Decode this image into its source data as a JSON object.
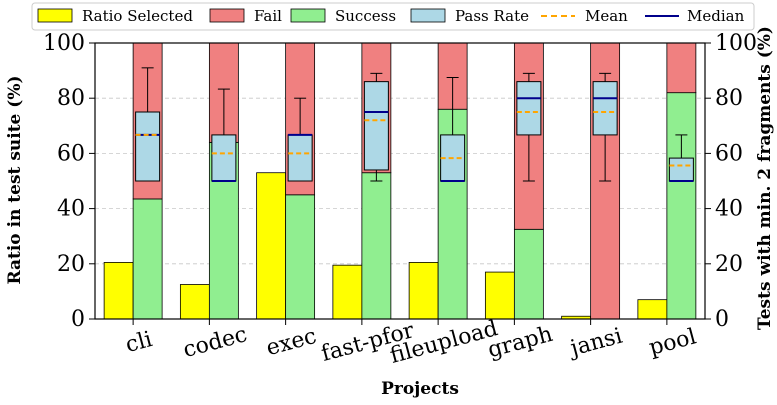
{
  "chart_data": {
    "type": "bar",
    "categories": [
      "cli",
      "codec",
      "exec",
      "fast-pfor",
      "fileupload",
      "graph",
      "jansi",
      "pool"
    ],
    "xlabel": "Projects",
    "ylabel": "Ratio in test suite (%)",
    "y2label": "Tests with min. 2 fragments (%)",
    "ylim": [
      0,
      100
    ],
    "y2lim": [
      0,
      100
    ],
    "yticks": [
      "0",
      "20",
      "40",
      "60",
      "80",
      "100"
    ],
    "grid": "horizontal dashed",
    "legend_position": "top",
    "series": [
      {
        "name": "Ratio Selected",
        "color": "#ffff00",
        "values": [
          20.5,
          12.5,
          53,
          19.5,
          20.5,
          17,
          1,
          7
        ]
      },
      {
        "name": "Fail",
        "color": "#f08080",
        "values": [
          56.5,
          36,
          55,
          47,
          24,
          67.5,
          100,
          18
        ]
      },
      {
        "name": "Success",
        "color": "#90ee90",
        "values": [
          43.5,
          64,
          45,
          53,
          76,
          32.5,
          0,
          82
        ]
      }
    ],
    "pass_rate_boxes": {
      "name": "Pass Rate",
      "color": "#add8e6",
      "boxes": [
        {
          "whisker_low": 50,
          "q1": 50,
          "median": 66.7,
          "q3": 75,
          "whisker_high": 91,
          "mean": 66.7
        },
        {
          "whisker_low": 50,
          "q1": 50,
          "median": 50,
          "q3": 66.7,
          "whisker_high": 83.3,
          "mean": 60
        },
        {
          "whisker_low": 50,
          "q1": 50,
          "median": 66.7,
          "q3": 66.7,
          "whisker_high": 80,
          "mean": 60
        },
        {
          "whisker_low": 50,
          "q1": 54,
          "median": 75,
          "q3": 86,
          "whisker_high": 89,
          "mean": 72
        },
        {
          "whisker_low": 50,
          "q1": 50,
          "median": 50,
          "q3": 66.7,
          "whisker_high": 87.5,
          "mean": 58.3
        },
        {
          "whisker_low": 50,
          "q1": 66.7,
          "median": 80,
          "q3": 86,
          "whisker_high": 89,
          "mean": 75
        },
        {
          "whisker_low": 50,
          "q1": 66.7,
          "median": 80,
          "q3": 86,
          "whisker_high": 89,
          "mean": 75
        },
        {
          "whisker_low": 50,
          "q1": 50,
          "median": 50,
          "q3": 58.3,
          "whisker_high": 66.7,
          "mean": 55.6
        }
      ]
    },
    "mean_style": {
      "name": "Mean",
      "color": "#ffa500",
      "dash": "dashed"
    },
    "median_style": {
      "name": "Median",
      "color": "#00008b"
    }
  }
}
